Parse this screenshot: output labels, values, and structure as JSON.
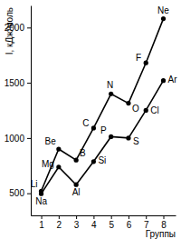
{
  "chart_data": {
    "type": "line",
    "y_label": "I, кДж/моль",
    "x_label": "Группы",
    "x": [
      1,
      2,
      3,
      4,
      5,
      6,
      7,
      8
    ],
    "series": [
      {
        "color": "#000000",
        "marker": "circle",
        "line_style": "solid",
        "labels": [
          "Li",
          "Be",
          "B",
          "C",
          "N",
          "O",
          "F",
          "Ne"
        ],
        "values": [
          520,
          900,
          800,
          1090,
          1400,
          1315,
          1680,
          2080
        ]
      },
      {
        "color": "#000000",
        "marker": "circle",
        "line_style": "solid",
        "labels": [
          "Na",
          "Mg",
          "Al",
          "Si",
          "P",
          "S",
          "Cl",
          "Ar"
        ],
        "values": [
          496,
          738,
          578,
          787,
          1012,
          1000,
          1251,
          1520
        ]
      }
    ],
    "xlim": [
      0.4,
      8.7
    ],
    "xticks": [
      1,
      2,
      3,
      4,
      5,
      6,
      7,
      8
    ],
    "ylim": [
      300,
      2200
    ],
    "yticks": [
      500,
      1000,
      1500,
      2000
    ],
    "grid": false
  }
}
